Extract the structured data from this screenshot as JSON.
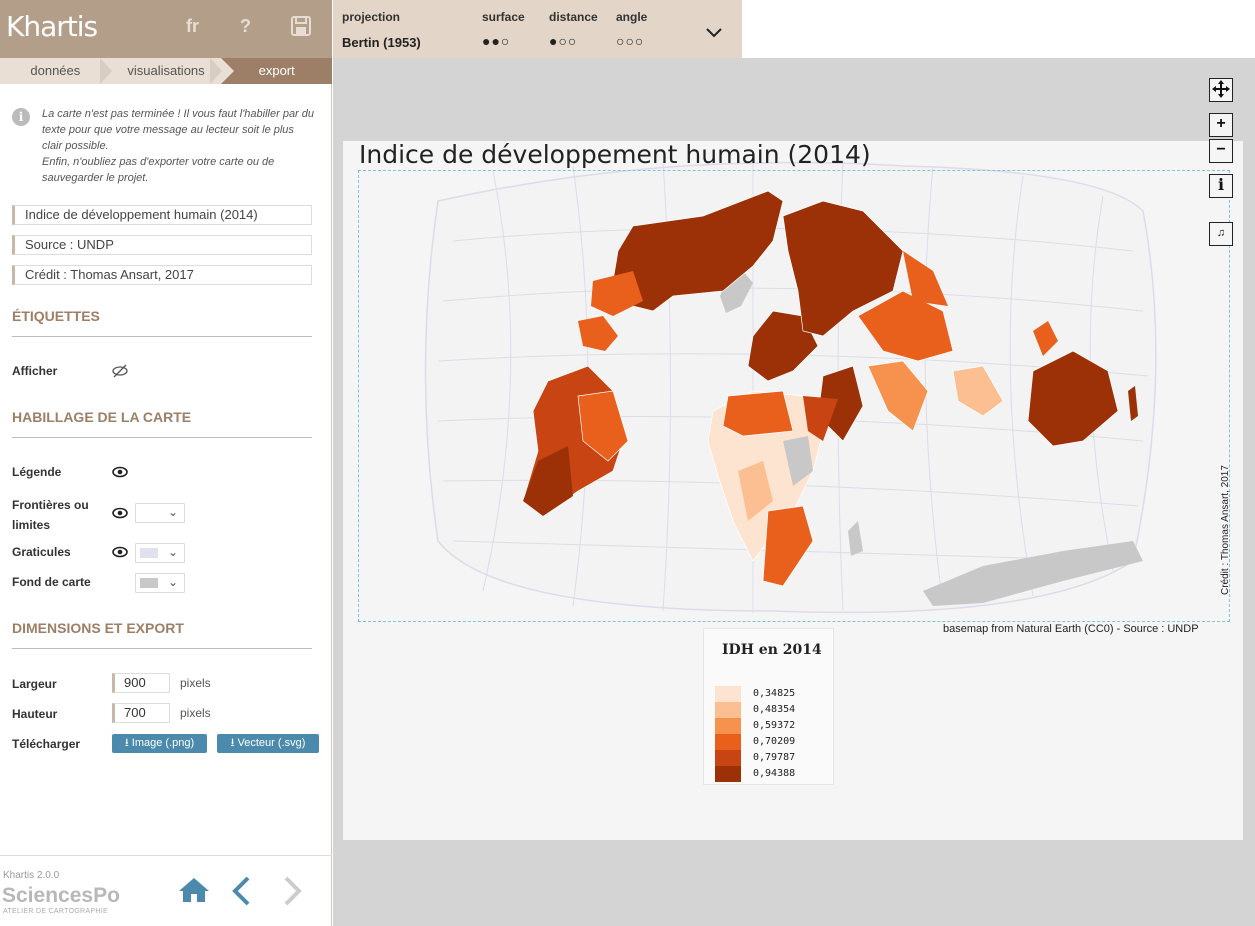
{
  "app": {
    "logo": "Khartis",
    "lang": "fr",
    "help": "?",
    "save_icon": "save-icon"
  },
  "steps": [
    "données",
    "visualisations",
    "export"
  ],
  "info": {
    "line1": "La carte n'est pas terminée ! Il vous faut l'habiller par du texte pour que votre message au lecteur soit le plus clair possible.",
    "line2": "Enfin, n'oubliez pas d'exporter votre carte ou de sauvegarder le projet."
  },
  "fields": {
    "title": "Indice de développement humain (2014)",
    "source": "Source : UNDP",
    "credit": "Crédit : Thomas Ansart, 2017"
  },
  "labels_section": {
    "title": "ÉTIQUETTES",
    "show": "Afficher"
  },
  "dress_section": {
    "title": "HABILLAGE DE LA CARTE",
    "legend": "Légende",
    "borders": "Frontières ou limites",
    "graticules": "Graticules",
    "background": "Fond de carte"
  },
  "export_section": {
    "title": "DIMENSIONS ET EXPORT",
    "width_label": "Largeur",
    "width": "900",
    "height_label": "Hauteur",
    "height": "700",
    "unit": "pixels",
    "download": "Télécharger",
    "png": "Image (.png)",
    "svg": "Vecteur (.svg)"
  },
  "footer": {
    "version": "Khartis 2.0.0",
    "org": "SciencesPo",
    "sub": "ATELIER DE CARTOGRAPHIE"
  },
  "mapbar": {
    "projection_label": "projection",
    "projection": "Bertin (1953)",
    "surface_label": "surface",
    "surface": "●●○",
    "distance_label": "distance",
    "distance": "●○○",
    "angle_label": "angle",
    "angle": "○○○"
  },
  "map": {
    "title": "Indice de développement humain (2014)",
    "credit": "Crédit : Thomas Ansart, 2017",
    "basemap": "basemap from Natural Earth (CC0) - Source : UNDP"
  },
  "legend": {
    "title": "IDH en 2014",
    "items": [
      {
        "value": "0,34825",
        "color": "#fde4d0"
      },
      {
        "value": "0,48354",
        "color": "#fbbf91"
      },
      {
        "value": "0,59372",
        "color": "#f6924d"
      },
      {
        "value": "0,70209",
        "color": "#e8601c"
      },
      {
        "value": "0,79787",
        "color": "#c84412"
      },
      {
        "value": "0,94388",
        "color": "#9c3107"
      }
    ]
  },
  "colors": {
    "no_data": "#c8c8c8",
    "graticule": "#dcdce8"
  }
}
